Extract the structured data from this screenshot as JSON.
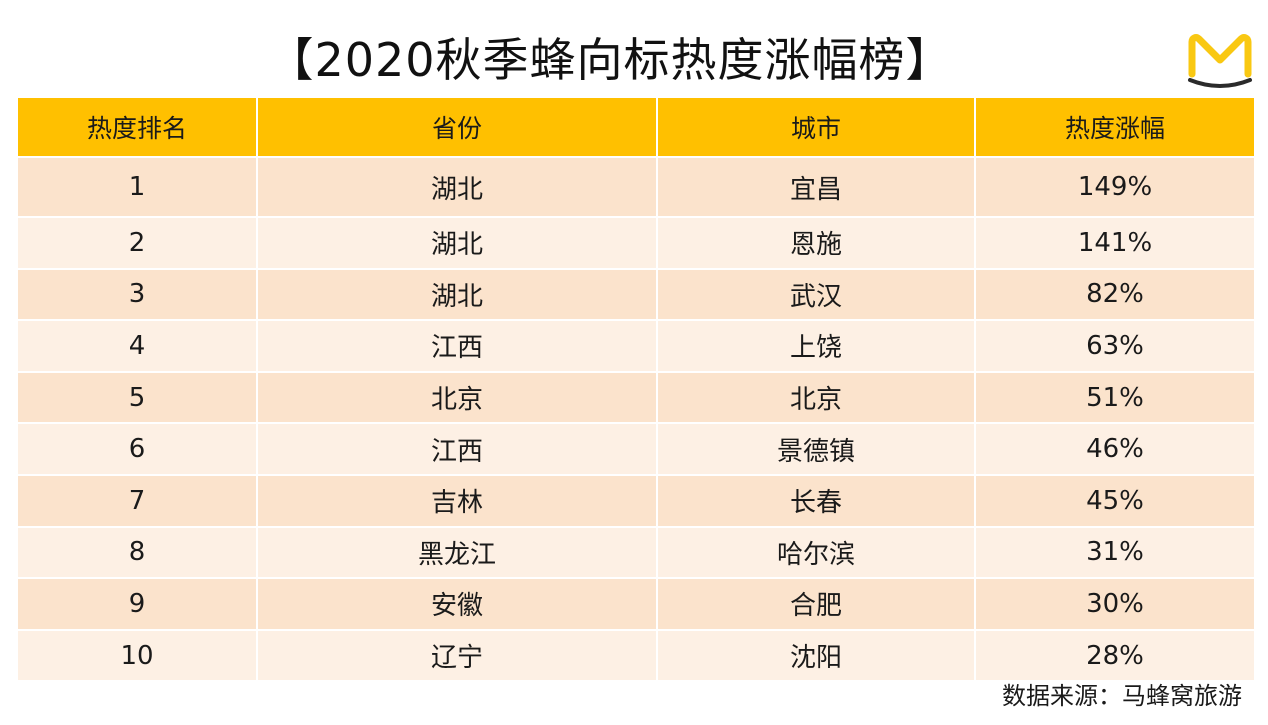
{
  "title": "【2020秋季蜂向标热度涨幅榜】",
  "source": "数据来源：马蜂窝旅游",
  "colors": {
    "header": "#FFC000",
    "row_odd": "#FBE3CC",
    "row_even": "#FDF0E4",
    "logo": "#F9C812",
    "logo_base": "#2B2B2B"
  },
  "logo_icon": "mafengwo-m-logo-icon",
  "chart_data": {
    "type": "table",
    "title": "【2020秋季蜂向标热度涨幅榜】",
    "columns": [
      "热度排名",
      "省份",
      "城市",
      "热度涨幅"
    ],
    "rows": [
      {
        "rank": "1",
        "province": "湖北",
        "city": "宜昌",
        "growth": "149%"
      },
      {
        "rank": "2",
        "province": "湖北",
        "city": "恩施",
        "growth": "141%"
      },
      {
        "rank": "3",
        "province": "湖北",
        "city": "武汉",
        "growth": "82%"
      },
      {
        "rank": "4",
        "province": "江西",
        "city": "上饶",
        "growth": "63%"
      },
      {
        "rank": "5",
        "province": "北京",
        "city": "北京",
        "growth": "51%"
      },
      {
        "rank": "6",
        "province": "江西",
        "city": "景德镇",
        "growth": "46%"
      },
      {
        "rank": "7",
        "province": "吉林",
        "city": "长春",
        "growth": "45%"
      },
      {
        "rank": "8",
        "province": "黑龙江",
        "city": "哈尔滨",
        "growth": "31%"
      },
      {
        "rank": "9",
        "province": "安徽",
        "city": "合肥",
        "growth": "30%"
      },
      {
        "rank": "10",
        "province": "辽宁",
        "city": "沈阳",
        "growth": "28%"
      }
    ]
  }
}
